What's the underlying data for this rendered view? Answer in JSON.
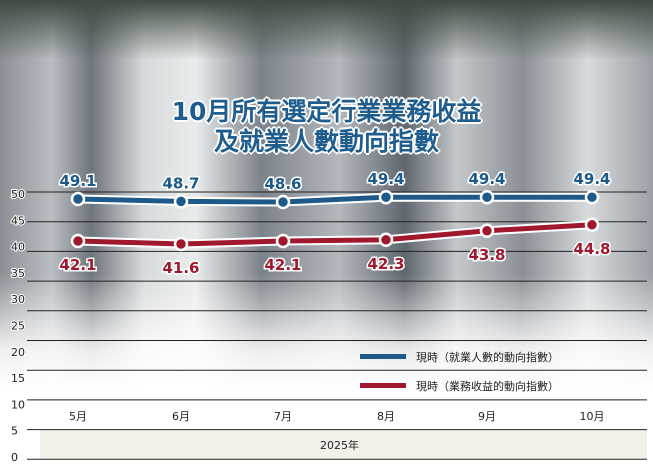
{
  "chart_data": {
    "type": "line",
    "title": "10月所有選定行業業務收益及就業人數動向指數",
    "title_lines": [
      "10月所有選定行業業務收益",
      "及就業人數動向指數"
    ],
    "categories": [
      "5月",
      "6月",
      "7月",
      "8月",
      "9月",
      "10月"
    ],
    "xlabel": "2025年",
    "ylabel": "",
    "yticks": [
      50,
      45,
      40,
      35,
      30,
      25,
      20,
      15,
      10,
      5,
      0
    ],
    "ylim": [
      0,
      50
    ],
    "grid": true,
    "legend_position": "bottom-right",
    "series": [
      {
        "name": "現時（就業人數的動向指數）",
        "color": "#1d5a8a",
        "values": [
          49.1,
          48.7,
          48.6,
          49.4,
          49.4,
          49.4
        ]
      },
      {
        "name": "現時（業務收益的動向指數）",
        "color": "#a0182e",
        "values": [
          42.1,
          41.6,
          42.1,
          42.3,
          43.8,
          44.8
        ]
      }
    ]
  }
}
